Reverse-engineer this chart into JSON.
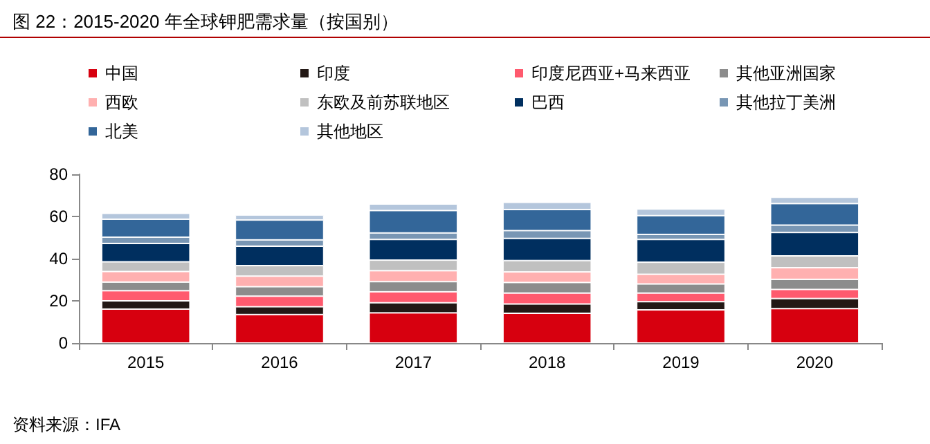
{
  "chart_data": {
    "type": "bar",
    "title": "图 22：2015-2020 年全球钾肥需求量（按国别）",
    "categories": [
      "2015",
      "2016",
      "2017",
      "2018",
      "2019",
      "2020"
    ],
    "stacked": true,
    "legend": "top",
    "grid": false,
    "ylim": [
      0,
      80
    ],
    "yticks": [
      0,
      20,
      40,
      60,
      80
    ],
    "annotations": [
      "资料来源：IFA"
    ],
    "series": [
      {
        "name": "中国",
        "color": "#d7000f",
        "values": [
          16.1,
          13.5,
          14.3,
          14.1,
          15.7,
          16.3
        ]
      },
      {
        "name": "印度",
        "color": "#231815",
        "values": [
          3.9,
          3.7,
          4.8,
          4.4,
          3.9,
          4.8
        ]
      },
      {
        "name": "印度尼西亚+马来西亚",
        "color": "#ff5a6e",
        "values": [
          4.8,
          5.0,
          5.2,
          5.2,
          4.1,
          4.3
        ]
      },
      {
        "name": "其他亚洲国家",
        "color": "#8c8c8c",
        "values": [
          4.1,
          4.5,
          4.8,
          5.0,
          4.3,
          4.8
        ]
      },
      {
        "name": "西欧",
        "color": "#ffb0b0",
        "values": [
          5.0,
          5.0,
          5.2,
          5.0,
          4.6,
          5.5
        ]
      },
      {
        "name": "东欧及前苏联地区",
        "color": "#c0c0c0",
        "values": [
          4.6,
          5.0,
          5.0,
          5.4,
          5.7,
          5.6
        ]
      },
      {
        "name": "巴西",
        "color": "#002f5f",
        "values": [
          8.7,
          9.2,
          9.8,
          10.5,
          10.8,
          11.1
        ]
      },
      {
        "name": "其他拉丁美洲",
        "color": "#7896b4",
        "values": [
          3.0,
          3.0,
          3.1,
          3.7,
          2.4,
          3.5
        ]
      },
      {
        "name": "北美",
        "color": "#336699",
        "values": [
          8.5,
          9.4,
          10.6,
          10.0,
          8.9,
          10.2
        ]
      },
      {
        "name": "其他地区",
        "color": "#b4c6dc",
        "values": [
          2.8,
          2.4,
          3.1,
          3.4,
          3.1,
          3.0
        ]
      }
    ]
  }
}
